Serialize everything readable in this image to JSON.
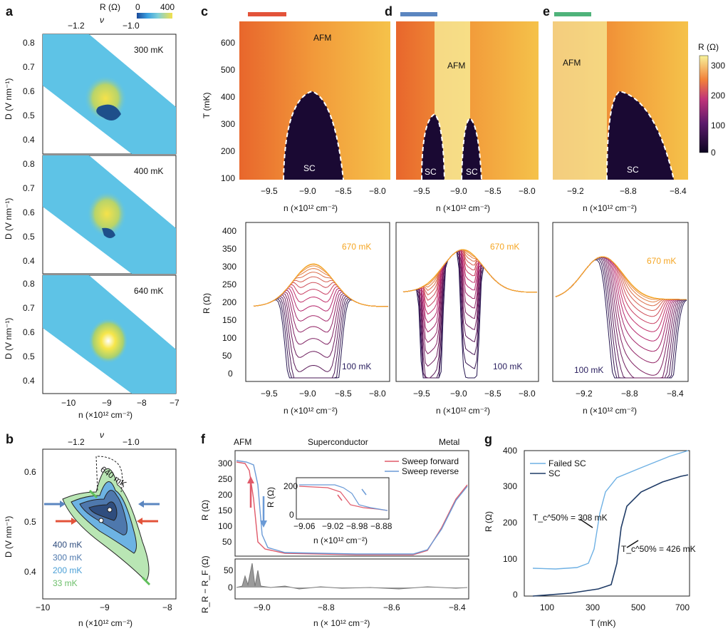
{
  "panel_labels": {
    "a": "a",
    "b": "b",
    "c": "c",
    "d": "d",
    "e": "e",
    "f": "f",
    "g": "g"
  },
  "colors": {
    "bg_panel_a": "#5ec3e6",
    "hot_low": "#1a0933",
    "hot_mid": "#c0347a",
    "hot_high": "#f7f09c",
    "red_bar": "#e3533a",
    "blue_bar": "#5b86c0",
    "green_bar": "#4fb37a"
  },
  "panel_a": {
    "colorbar_label": "R (Ω)",
    "colorbar_min": "0",
    "colorbar_max": "400",
    "nu_label": "ν",
    "nu_ticks": [
      "−1.2",
      "−1.0"
    ],
    "d_ticks": [
      "0.8",
      "0.7",
      "0.6",
      "0.5",
      "0.4"
    ],
    "n_ticks": [
      "−10",
      "−9",
      "−8",
      "−7"
    ],
    "ylabel": "D (V nm⁻¹)",
    "xlabel": "n (×10¹² cm⁻²)",
    "temps": [
      "300 mK",
      "400 mK",
      "640 mK"
    ]
  },
  "panel_b": {
    "nu_label": "ν",
    "nu_ticks": [
      "−1.2",
      "−1.0"
    ],
    "y_ticks": [
      "0.6",
      "0.5",
      "0.4"
    ],
    "x_ticks": [
      "−10",
      "−9",
      "−8"
    ],
    "ylabel": "D (V nm⁻¹)",
    "xlabel": "n (×10¹² cm⁻²)",
    "curve_label": "640 mK",
    "legend": [
      {
        "label": "400 mK",
        "color": "#2f4d7e"
      },
      {
        "label": "300 mK",
        "color": "#4e78ad"
      },
      {
        "label": "200 mK",
        "color": "#4a9fd6"
      },
      {
        "label": "33 mK",
        "color": "#8fcf8a"
      }
    ]
  },
  "panels_cde": {
    "t_ticks": [
      "600",
      "500",
      "400",
      "300",
      "200",
      "100"
    ],
    "t_label": "T (mK)",
    "c_xticks": [
      "−9.5",
      "−9.0",
      "−8.5",
      "−8.0"
    ],
    "d_xticks": [
      "−9.5",
      "−9.0",
      "−8.5",
      "−8.0"
    ],
    "e_xticks": [
      "−9.2",
      "−8.8",
      "−8.4"
    ],
    "xlabel": "n (×10¹² cm⁻²)",
    "afm": "AFM",
    "sc": "SC",
    "colorbar_label": "R (Ω)",
    "colorbar_ticks": [
      "300",
      "200",
      "100",
      "0"
    ],
    "r_ticks": [
      "400",
      "350",
      "300",
      "250",
      "200",
      "150",
      "100",
      "50",
      "0"
    ],
    "r_label": "R (Ω)",
    "hi_label": "670 mK",
    "lo_label": "100 mK"
  },
  "panel_f": {
    "top_labels": [
      "AFM",
      "Superconductor",
      "Metal"
    ],
    "legend": [
      {
        "label": "Sweep forward",
        "color": "#e05a6a"
      },
      {
        "label": "Sweep reverse",
        "color": "#6a9ad6"
      }
    ],
    "y_ticks": [
      "300",
      "250",
      "200",
      "150",
      "100",
      "50"
    ],
    "ylabel": "R (Ω)",
    "inset_yticks": [
      "200",
      "0"
    ],
    "inset_xticks": [
      "−9.06",
      "−9.02",
      "−8.98",
      "−8.88"
    ],
    "inset_xlabel": "n (×10¹² cm⁻²)",
    "inset_ylabel": "R (Ω)",
    "diff_ticks": [
      "50",
      "0"
    ],
    "diff_label": "R_R − R_F (Ω)",
    "x_ticks": [
      "−9.0",
      "−8.8",
      "−8.6",
      "−8.4"
    ],
    "xlabel": "n (× 10¹² cm⁻²)"
  },
  "panel_g": {
    "legend": [
      {
        "label": "Failed SC",
        "color": "#6fb1e4"
      },
      {
        "label": "SC",
        "color": "#1f3b66"
      }
    ],
    "y_ticks": [
      "400",
      "300",
      "200",
      "100",
      "0"
    ],
    "ylabel": "R (Ω)",
    "x_ticks": [
      "100",
      "300",
      "500",
      "700"
    ],
    "xlabel": "T (mK)",
    "ann1": "T_c^50% = 308 mK",
    "ann2": "T_c^50% = 426 mK"
  }
}
